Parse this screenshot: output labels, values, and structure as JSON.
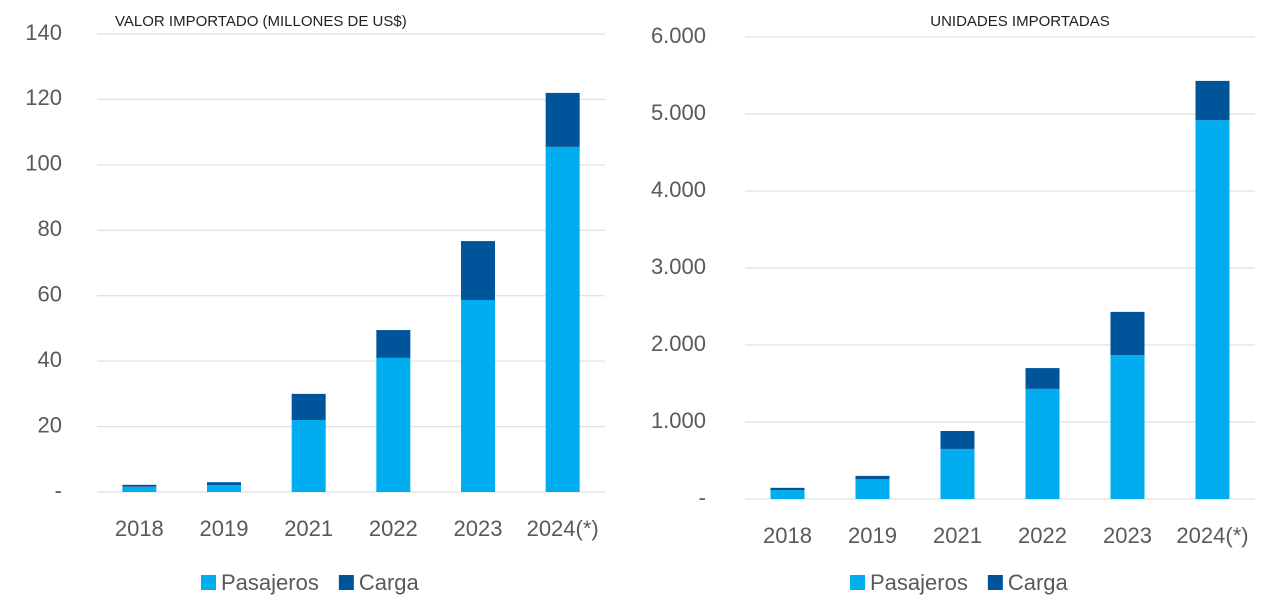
{
  "chart_data": [
    {
      "type": "stacked_bar",
      "title": "VALOR IMPORTADO (MILLONES DE US$)",
      "categories": [
        "2018",
        "2019",
        "2021",
        "2022",
        "2023",
        "2024(*)"
      ],
      "series": [
        {
          "name": "Pasajeros",
          "color": "#00aeef",
          "values": [
            1.6,
            2.1,
            22,
            41,
            58.7,
            105.5
          ]
        },
        {
          "name": "Carga",
          "color": "#00549a",
          "values": [
            0.6,
            0.9,
            8,
            8.5,
            18,
            16.5
          ]
        }
      ],
      "ylim": [
        0,
        140
      ],
      "yticks": [
        {
          "value": 0,
          "label": "-"
        },
        20,
        40,
        60,
        80,
        100,
        120,
        140
      ],
      "grid": true,
      "legend": "bottom"
    },
    {
      "type": "stacked_bar",
      "title": "UNIDADES IMPORTADAS",
      "categories": [
        "2018",
        "2019",
        "2021",
        "2022",
        "2023",
        "2024(*)"
      ],
      "series": [
        {
          "name": "Pasajeros",
          "color": "#00aeef",
          "values": [
            115,
            260,
            650,
            1430,
            1870,
            4920
          ]
        },
        {
          "name": "Carga",
          "color": "#00549a",
          "values": [
            30,
            40,
            233,
            270,
            560,
            510
          ]
        }
      ],
      "ylim": [
        0,
        6000
      ],
      "yticks": [
        {
          "value": 0,
          "label": "-"
        },
        {
          "value": 1000,
          "label": "1.000"
        },
        {
          "value": 2000,
          "label": "2.000"
        },
        {
          "value": 3000,
          "label": "3.000"
        },
        {
          "value": 4000,
          "label": "4.000"
        },
        {
          "value": 5000,
          "label": "5.000"
        },
        {
          "value": 6000,
          "label": "6.000"
        }
      ],
      "grid": true,
      "legend": "bottom"
    }
  ]
}
